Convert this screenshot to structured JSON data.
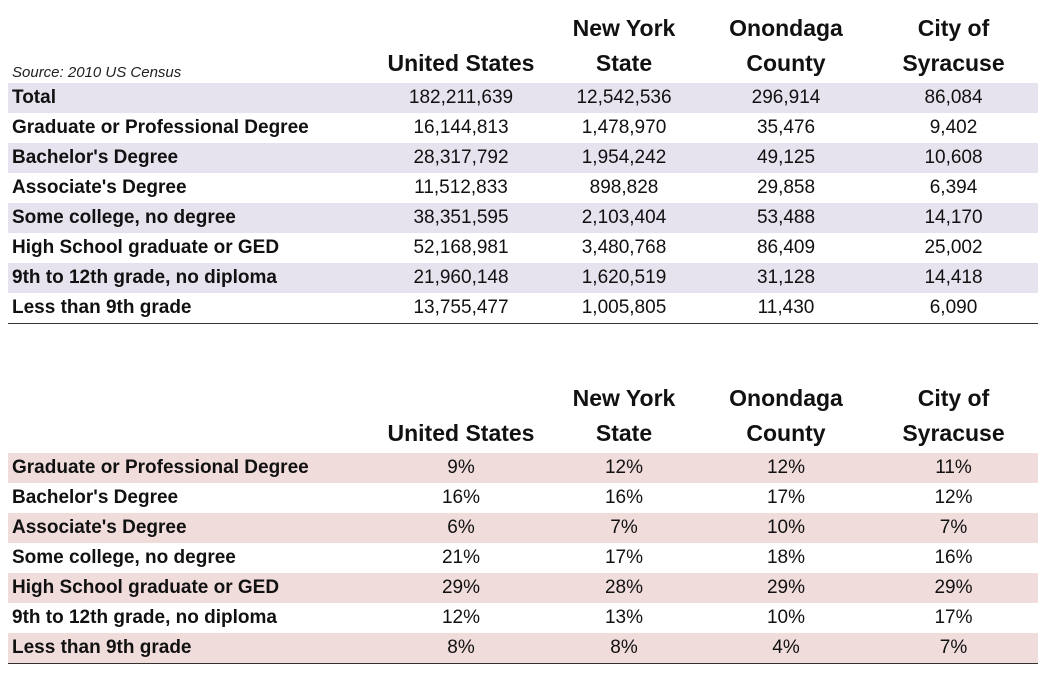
{
  "source": "Source: 2010 US Census",
  "columns": [
    [
      "United States"
    ],
    [
      "New York",
      "State"
    ],
    [
      "Onondaga",
      "County"
    ],
    [
      "City of",
      "Syracuse"
    ]
  ],
  "counts_table": {
    "rows": [
      {
        "label": "Total",
        "values": [
          "182,211,639",
          "12,542,536",
          "296,914",
          "86,084"
        ]
      },
      {
        "label": "Graduate or Professional Degree",
        "values": [
          "16,144,813",
          "1,478,970",
          "35,476",
          "9,402"
        ]
      },
      {
        "label": "Bachelor's Degree",
        "values": [
          "28,317,792",
          "1,954,242",
          "49,125",
          "10,608"
        ]
      },
      {
        "label": "Associate's Degree",
        "values": [
          "11,512,833",
          "898,828",
          "29,858",
          "6,394"
        ]
      },
      {
        "label": "Some college, no degree",
        "values": [
          "38,351,595",
          "2,103,404",
          "53,488",
          "14,170"
        ]
      },
      {
        "label": "High School graduate or GED",
        "values": [
          "52,168,981",
          "3,480,768",
          "86,409",
          "25,002"
        ]
      },
      {
        "label": "9th to 12th grade, no diploma",
        "values": [
          "21,960,148",
          "1,620,519",
          "31,128",
          "14,418"
        ]
      },
      {
        "label": "Less than 9th grade",
        "values": [
          "13,755,477",
          "1,005,805",
          "11,430",
          "6,090"
        ]
      }
    ]
  },
  "percent_table": {
    "rows": [
      {
        "label": "Graduate or Professional Degree",
        "values": [
          "9%",
          "12%",
          "12%",
          "11%"
        ]
      },
      {
        "label": "Bachelor's Degree",
        "values": [
          "16%",
          "16%",
          "17%",
          "12%"
        ]
      },
      {
        "label": "Associate's Degree",
        "values": [
          "6%",
          "7%",
          "10%",
          "7%"
        ]
      },
      {
        "label": "Some college, no degree",
        "values": [
          "21%",
          "17%",
          "18%",
          "16%"
        ]
      },
      {
        "label": "High School graduate or GED",
        "values": [
          "29%",
          "28%",
          "29%",
          "29%"
        ]
      },
      {
        "label": "9th to 12th grade, no diploma",
        "values": [
          "12%",
          "13%",
          "10%",
          "17%"
        ]
      },
      {
        "label": "Less than 9th grade",
        "values": [
          "8%",
          "8%",
          "4%",
          "7%"
        ]
      }
    ]
  },
  "colors": {
    "counts_shade": "#e6e2ee",
    "percent_shade": "#f1dcdc"
  }
}
